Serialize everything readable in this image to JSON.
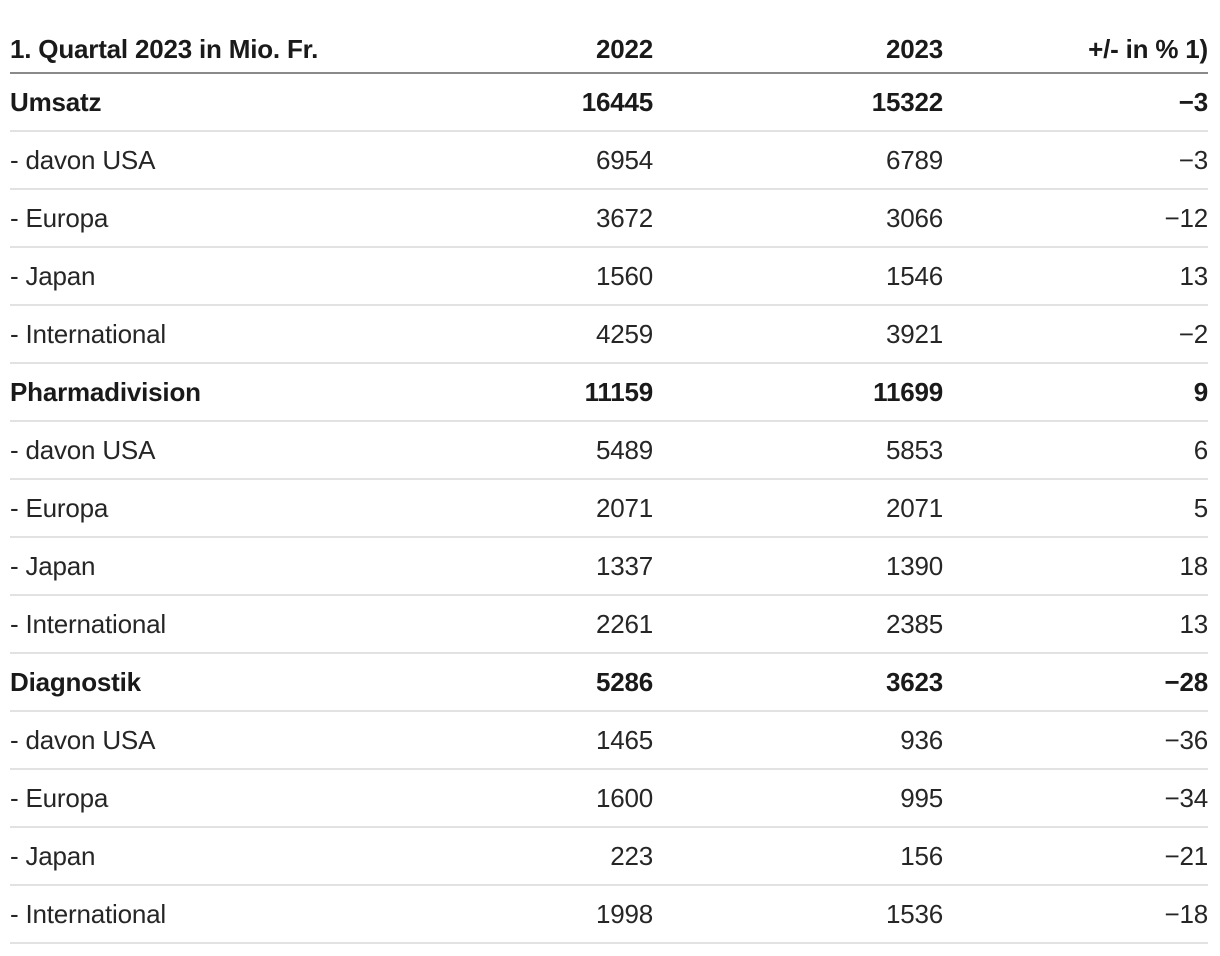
{
  "table": {
    "header": {
      "label": "1. Quartal 2023 in Mio. Fr.",
      "col_2022": "2022",
      "col_2023": "2023",
      "col_change": "+/- in % 1)"
    },
    "rows": [
      {
        "label": "Umsatz",
        "emphasis": true,
        "v2022": "16445",
        "v2023": "15322",
        "change": "−3"
      },
      {
        "label": "- davon USA",
        "emphasis": false,
        "v2022": "6954",
        "v2023": "6789",
        "change": "−3"
      },
      {
        "label": "- Europa",
        "emphasis": false,
        "v2022": "3672",
        "v2023": "3066",
        "change": "−12"
      },
      {
        "label": "- Japan",
        "emphasis": false,
        "v2022": "1560",
        "v2023": "1546",
        "change": "13"
      },
      {
        "label": "- International",
        "emphasis": false,
        "v2022": "4259",
        "v2023": "3921",
        "change": "−2"
      },
      {
        "label": "Pharmadivision",
        "emphasis": true,
        "v2022": "11159",
        "v2023": "11699",
        "change": "9"
      },
      {
        "label": "- davon USA",
        "emphasis": false,
        "v2022": "5489",
        "v2023": "5853",
        "change": "6"
      },
      {
        "label": "- Europa",
        "emphasis": false,
        "v2022": "2071",
        "v2023": "2071",
        "change": "5"
      },
      {
        "label": "- Japan",
        "emphasis": false,
        "v2022": "1337",
        "v2023": "1390",
        "change": "18"
      },
      {
        "label": "- International",
        "emphasis": false,
        "v2022": "2261",
        "v2023": "2385",
        "change": "13"
      },
      {
        "label": "Diagnostik",
        "emphasis": true,
        "v2022": "5286",
        "v2023": "3623",
        "change": "−28"
      },
      {
        "label": "- davon USA",
        "emphasis": false,
        "v2022": "1465",
        "v2023": "936",
        "change": "−36"
      },
      {
        "label": "- Europa",
        "emphasis": false,
        "v2022": "1600",
        "v2023": "995",
        "change": "−34"
      },
      {
        "label": "- Japan",
        "emphasis": false,
        "v2022": "223",
        "v2023": "156",
        "change": "−21"
      },
      {
        "label": "- International",
        "emphasis": false,
        "v2022": "1998",
        "v2023": "1536",
        "change": "−18"
      }
    ]
  },
  "colors": {
    "background": "#ffffff",
    "text": "#262626",
    "text_strong": "#1a1a1a",
    "header_rule": "#8a8a8a",
    "row_rule": "#e2e2e2"
  },
  "chart_data": {
    "type": "table",
    "title": "1. Quartal 2023 in Mio. Fr.",
    "columns": [
      "1. Quartal 2023 in Mio. Fr.",
      "2022",
      "2023",
      "+/- in % 1)"
    ],
    "rows": [
      [
        "Umsatz",
        16445,
        15322,
        -3
      ],
      [
        "- davon USA",
        6954,
        6789,
        -3
      ],
      [
        "- Europa",
        3672,
        3066,
        -12
      ],
      [
        "- Japan",
        1560,
        1546,
        13
      ],
      [
        "- International",
        4259,
        3921,
        -2
      ],
      [
        "Pharmadivision",
        11159,
        11699,
        9
      ],
      [
        "- davon USA",
        5489,
        5853,
        6
      ],
      [
        "- Europa",
        2071,
        2071,
        5
      ],
      [
        "- Japan",
        1337,
        1390,
        18
      ],
      [
        "- International",
        2261,
        2385,
        13
      ],
      [
        "Diagnostik",
        5286,
        3623,
        -28
      ],
      [
        "- davon USA",
        1465,
        936,
        -36
      ],
      [
        "- Europa",
        1600,
        995,
        -34
      ],
      [
        "- Japan",
        223,
        156,
        -21
      ],
      [
        "- International",
        1998,
        1536,
        -18
      ]
    ],
    "notes": "Bold section rows: Umsatz, Pharmadivision, Diagnostik. Footnote marker '1)' on change column. Values in Mio. Fr.; change column in percent."
  }
}
